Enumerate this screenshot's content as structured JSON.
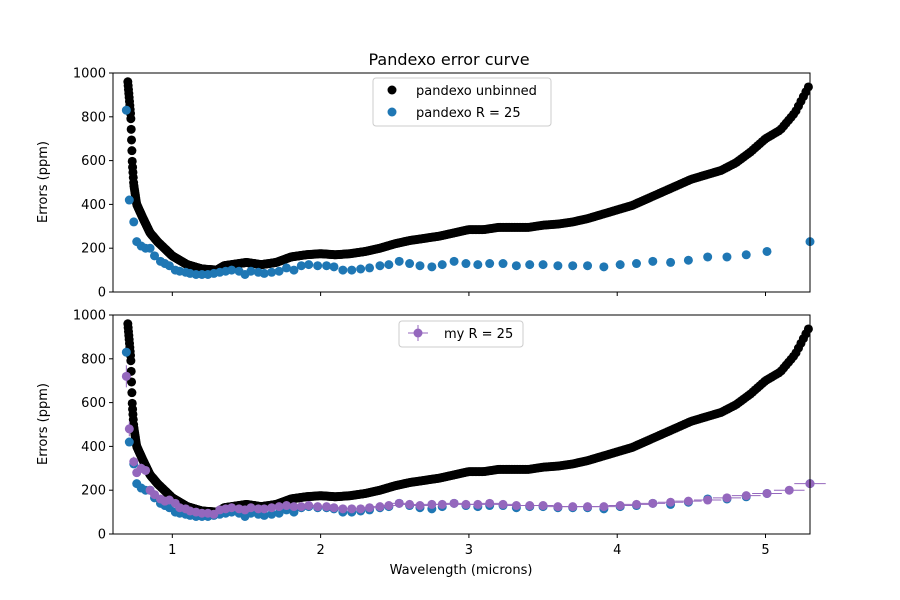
{
  "chart_data": {
    "type": "scatter",
    "title": "Pandexo error curve",
    "xlabel": "Wavelength (microns)",
    "xlim": [
      0.6,
      5.3
    ],
    "xticks": [
      1,
      2,
      3,
      4,
      5
    ],
    "colors": {
      "unbinned": "#000000",
      "pandexo_r25": "#1f77b4",
      "my_r25": "#9467bd"
    },
    "panels": [
      {
        "ylabel": "Errors (ppm)",
        "ylim": [
          0,
          1000
        ],
        "yticks": [
          0,
          200,
          400,
          600,
          800,
          1000
        ],
        "legend_position": "top-center",
        "series": [
          {
            "name": "pandexo unbinned",
            "color": "#000000",
            "anchors": [
              [
                0.7,
                960
              ],
              [
                0.72,
                800
              ],
              [
                0.73,
                590
              ],
              [
                0.74,
                490
              ],
              [
                0.76,
                400
              ],
              [
                0.8,
                340
              ],
              [
                0.85,
                270
              ],
              [
                0.9,
                230
              ],
              [
                1.0,
                165
              ],
              [
                1.1,
                125
              ],
              [
                1.2,
                105
              ],
              [
                1.3,
                100
              ],
              [
                1.35,
                120
              ],
              [
                1.45,
                130
              ],
              [
                1.5,
                135
              ],
              [
                1.6,
                125
              ],
              [
                1.7,
                135
              ],
              [
                1.8,
                160
              ],
              [
                1.9,
                170
              ],
              [
                2.0,
                175
              ],
              [
                2.1,
                170
              ],
              [
                2.2,
                175
              ],
              [
                2.3,
                185
              ],
              [
                2.4,
                200
              ],
              [
                2.5,
                220
              ],
              [
                2.6,
                235
              ],
              [
                2.7,
                245
              ],
              [
                2.8,
                255
              ],
              [
                2.9,
                270
              ],
              [
                3.0,
                285
              ],
              [
                3.1,
                285
              ],
              [
                3.2,
                295
              ],
              [
                3.3,
                295
              ],
              [
                3.4,
                295
              ],
              [
                3.5,
                305
              ],
              [
                3.6,
                310
              ],
              [
                3.7,
                320
              ],
              [
                3.8,
                335
              ],
              [
                3.9,
                355
              ],
              [
                4.0,
                375
              ],
              [
                4.1,
                395
              ],
              [
                4.2,
                425
              ],
              [
                4.3,
                455
              ],
              [
                4.4,
                485
              ],
              [
                4.5,
                515
              ],
              [
                4.6,
                535
              ],
              [
                4.7,
                555
              ],
              [
                4.8,
                590
              ],
              [
                4.9,
                640
              ],
              [
                5.0,
                700
              ],
              [
                5.1,
                740
              ],
              [
                5.2,
                820
              ],
              [
                5.3,
                950
              ]
            ]
          },
          {
            "name": "pandexo R = 25",
            "color": "#1f77b4",
            "x": [
              0.69,
              0.71,
              0.74,
              0.76,
              0.79,
              0.82,
              0.85,
              0.88,
              0.92,
              0.95,
              0.98,
              1.02,
              1.05,
              1.09,
              1.12,
              1.16,
              1.2,
              1.24,
              1.28,
              1.32,
              1.36,
              1.4,
              1.45,
              1.49,
              1.53,
              1.58,
              1.62,
              1.67,
              1.72,
              1.77,
              1.82,
              1.87,
              1.92,
              1.98,
              2.04,
              2.09,
              2.15,
              2.21,
              2.27,
              2.33,
              2.4,
              2.46,
              2.53,
              2.6,
              2.67,
              2.75,
              2.82,
              2.9,
              2.98,
              3.06,
              3.14,
              3.23,
              3.32,
              3.41,
              3.5,
              3.6,
              3.7,
              3.8,
              3.91,
              4.02,
              4.13,
              4.24,
              4.36,
              4.48,
              4.61,
              4.74,
              4.87,
              5.01,
              5.3
            ],
            "y": [
              830,
              420,
              320,
              230,
              210,
              200,
              200,
              165,
              140,
              130,
              120,
              100,
              95,
              90,
              85,
              80,
              80,
              80,
              85,
              90,
              95,
              100,
              95,
              80,
              95,
              90,
              85,
              90,
              95,
              110,
              100,
              120,
              125,
              120,
              120,
              115,
              100,
              100,
              105,
              110,
              120,
              125,
              140,
              130,
              120,
              115,
              125,
              140,
              130,
              125,
              130,
              130,
              120,
              125,
              125,
              120,
              120,
              120,
              115,
              125,
              130,
              140,
              135,
              145,
              160,
              160,
              170,
              185,
              230
            ]
          }
        ]
      },
      {
        "ylabel": "Errors (ppm)",
        "ylim": [
          0,
          1000
        ],
        "yticks": [
          0,
          200,
          400,
          600,
          800,
          1000
        ],
        "legend_position": "top-center",
        "series": [
          {
            "name": "my R = 25",
            "color": "#9467bd",
            "x": [
              0.69,
              0.71,
              0.74,
              0.76,
              0.79,
              0.82,
              0.85,
              0.88,
              0.92,
              0.95,
              0.98,
              1.02,
              1.05,
              1.09,
              1.12,
              1.16,
              1.2,
              1.24,
              1.28,
              1.32,
              1.36,
              1.4,
              1.45,
              1.49,
              1.53,
              1.58,
              1.62,
              1.67,
              1.72,
              1.77,
              1.82,
              1.87,
              1.92,
              1.98,
              2.04,
              2.09,
              2.15,
              2.21,
              2.27,
              2.33,
              2.4,
              2.46,
              2.53,
              2.6,
              2.67,
              2.75,
              2.82,
              2.9,
              2.98,
              3.06,
              3.14,
              3.23,
              3.32,
              3.41,
              3.5,
              3.6,
              3.7,
              3.8,
              3.91,
              4.02,
              4.13,
              4.24,
              4.36,
              4.48,
              4.61,
              4.74,
              4.87,
              5.01,
              5.16,
              5.3
            ],
            "y": [
              720,
              480,
              330,
              280,
              300,
              290,
              200,
              180,
              160,
              150,
              155,
              140,
              120,
              115,
              105,
              100,
              95,
              95,
              90,
              110,
              115,
              120,
              115,
              110,
              120,
              115,
              115,
              120,
              125,
              130,
              125,
              125,
              130,
              125,
              125,
              120,
              115,
              115,
              115,
              120,
              125,
              130,
              140,
              135,
              130,
              135,
              135,
              140,
              135,
              135,
              140,
              135,
              130,
              130,
              130,
              125,
              125,
              125,
              125,
              130,
              135,
              140,
              145,
              150,
              155,
              165,
              175,
              185,
              200,
              230
            ]
          }
        ]
      }
    ]
  }
}
